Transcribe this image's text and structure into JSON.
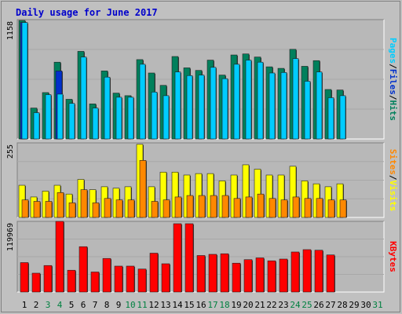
{
  "chart_data": {
    "type": "bar",
    "title": "Daily usage for June 2017",
    "categories": [
      "1",
      "2",
      "3",
      "4",
      "5",
      "6",
      "7",
      "8",
      "9",
      "10",
      "11",
      "12",
      "13",
      "14",
      "15",
      "16",
      "17",
      "18",
      "19",
      "20",
      "21",
      "22",
      "23",
      "24",
      "25",
      "26",
      "27",
      "28",
      "29",
      "30",
      "31"
    ],
    "weekend_days": [
      "3",
      "4",
      "10",
      "11",
      "17",
      "18",
      "24",
      "25",
      "31"
    ],
    "panels": [
      {
        "id": "hits-files-pages",
        "ymax_label": "1158",
        "ylim": [
          0,
          1158
        ],
        "side_labels": [
          "Pages",
          "/",
          "Files",
          "/",
          "Hits"
        ],
        "series": [
          {
            "name": "Hits",
            "color": "#00805c",
            "values": [
              1150,
              300,
              450,
              745,
              385,
              850,
              340,
              660,
              445,
              420,
              770,
              640,
              520,
              800,
              690,
              665,
              765,
              620,
              815,
              825,
              795,
              700,
              685,
              870,
              705,
              760,
              480,
              475,
              0,
              0,
              0
            ]
          },
          {
            "name": "Files",
            "color": "#0030cc",
            "values": [
              1130,
              0,
              0,
              660,
              0,
              0,
              0,
              0,
              0,
              0,
              0,
              0,
              0,
              0,
              0,
              0,
              0,
              0,
              0,
              0,
              0,
              0,
              0,
              0,
              0,
              0,
              0,
              0,
              0,
              0,
              0
            ]
          },
          {
            "name": "Pages",
            "color": "#00ccff",
            "values": [
              1130,
              255,
              430,
              435,
              345,
              795,
              300,
              600,
              405,
              405,
              725,
              455,
              420,
              650,
              615,
              620,
              695,
              585,
              725,
              765,
              745,
              640,
              645,
              780,
              560,
              650,
              400,
              420,
              0,
              0,
              0
            ]
          }
        ]
      },
      {
        "id": "visits-sites",
        "ymax_label": "255",
        "ylim": [
          0,
          255
        ],
        "side_labels": [
          "Sites",
          "/",
          "Visits"
        ],
        "series": [
          {
            "name": "Visits",
            "color": "#ffff00",
            "values": [
              110,
              70,
              90,
              110,
              80,
              130,
              95,
              105,
              100,
              105,
              250,
              105,
              155,
              155,
              145,
              150,
              150,
              125,
              145,
              180,
              165,
              145,
              145,
              175,
              125,
              115,
              105,
              115,
              0,
              0,
              0
            ]
          },
          {
            "name": "Sites",
            "color": "#ff8800",
            "values": [
              60,
              55,
              55,
              85,
              50,
              95,
              50,
              65,
              60,
              60,
              195,
              55,
              60,
              70,
              75,
              75,
              75,
              75,
              65,
              70,
              80,
              65,
              60,
              70,
              65,
              65,
              60,
              60,
              0,
              0,
              0
            ]
          }
        ]
      },
      {
        "id": "kbytes",
        "ymax_label": "119969",
        "ylim": [
          0,
          119969
        ],
        "side_labels": [
          "KBytes"
        ],
        "series": [
          {
            "name": "KBytes",
            "color": "#ff0000",
            "values": [
              50000,
              32000,
              45000,
              119969,
              37000,
              77000,
              34000,
              57000,
              44000,
              44000,
              39000,
              66000,
              48000,
              116000,
              116000,
              62000,
              64000,
              65000,
              49000,
              55000,
              58000,
              53000,
              56000,
              68000,
              72000,
              71000,
              63000,
              0,
              0,
              0,
              0
            ]
          }
        ]
      }
    ]
  },
  "colors": {
    "frame_background": "#c0c0c0",
    "plot_background": "#b8b8b8",
    "title": "#0000cc",
    "weekday_label": "#000000",
    "weekend_label": "#008040",
    "side_label_hits": "#00805c",
    "side_label_files": "#0030cc",
    "side_label_pages": "#00ccff",
    "side_label_visits": "#ffff00",
    "side_label_sites": "#ff8800",
    "side_label_kbytes": "#ff0000",
    "separator": "#000000"
  }
}
